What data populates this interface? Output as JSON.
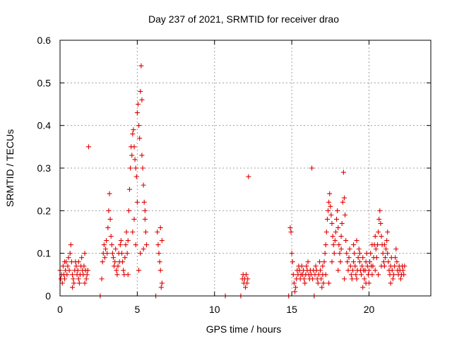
{
  "chart_data": {
    "type": "scatter",
    "title": "Day 237 of 2021, SRMTID for receiver drao",
    "xlabel": "GPS time / hours",
    "ylabel": "SRMTID / TECUs",
    "xlim": [
      0,
      24
    ],
    "ylim": [
      0,
      0.6
    ],
    "xticks": [
      0,
      5,
      10,
      15,
      20
    ],
    "yticks": [
      0,
      0.1,
      0.2,
      0.3,
      0.4,
      0.5,
      0.6
    ],
    "xtick_labels": [
      "0",
      "5",
      "10",
      "15",
      "20"
    ],
    "ytick_labels": [
      "0",
      "0.1",
      "0.2",
      "0.3",
      "0.4",
      "0.5",
      "0.6"
    ],
    "grid": true,
    "marker": "+",
    "color": "#e00000",
    "series": [
      {
        "name": "SRMTID",
        "points": [
          [
            0.0,
            0.06
          ],
          [
            0.05,
            0.04
          ],
          [
            0.1,
            0.05
          ],
          [
            0.15,
            0.03
          ],
          [
            0.2,
            0.07
          ],
          [
            0.25,
            0.05
          ],
          [
            0.3,
            0.04
          ],
          [
            0.35,
            0.06
          ],
          [
            0.4,
            0.08
          ],
          [
            0.45,
            0.05
          ],
          [
            0.5,
            0.07
          ],
          [
            0.55,
            0.09
          ],
          [
            0.6,
            0.06
          ],
          [
            0.65,
            0.1
          ],
          [
            0.7,
            0.12
          ],
          [
            0.75,
            0.08
          ],
          [
            0.8,
            0.05
          ],
          [
            0.85,
            0.04
          ],
          [
            0.9,
            0.03
          ],
          [
            0.95,
            0.06
          ],
          [
            1.0,
            0.08
          ],
          [
            1.05,
            0.07
          ],
          [
            1.1,
            0.05
          ],
          [
            1.15,
            0.06
          ],
          [
            1.2,
            0.04
          ],
          [
            1.25,
            0.03
          ],
          [
            1.3,
            0.05
          ],
          [
            1.35,
            0.07
          ],
          [
            1.4,
            0.09
          ],
          [
            1.45,
            0.06
          ],
          [
            1.5,
            0.05
          ],
          [
            1.55,
            0.07
          ],
          [
            1.6,
            0.1
          ],
          [
            1.65,
            0.06
          ],
          [
            1.7,
            0.04
          ],
          [
            1.75,
            0.05
          ],
          [
            1.8,
            0.06
          ],
          [
            1.85,
            0.35
          ],
          [
            0.3,
            0.08
          ],
          [
            0.8,
            0.02
          ],
          [
            1.2,
            0.08
          ],
          [
            1.6,
            0.03
          ],
          [
            2.6,
            0.0
          ],
          [
            2.7,
            0.04
          ],
          [
            2.75,
            0.08
          ],
          [
            2.8,
            0.1
          ],
          [
            2.85,
            0.12
          ],
          [
            2.9,
            0.09
          ],
          [
            2.95,
            0.11
          ],
          [
            3.0,
            0.13
          ],
          [
            3.05,
            0.1
          ],
          [
            3.1,
            0.16
          ],
          [
            3.15,
            0.2
          ],
          [
            3.2,
            0.24
          ],
          [
            3.25,
            0.18
          ],
          [
            3.3,
            0.14
          ],
          [
            3.35,
            0.12
          ],
          [
            3.4,
            0.1
          ],
          [
            3.45,
            0.09
          ],
          [
            3.5,
            0.07
          ],
          [
            3.55,
            0.08
          ],
          [
            3.6,
            0.11
          ],
          [
            3.65,
            0.06
          ],
          [
            3.7,
            0.05
          ],
          [
            3.75,
            0.07
          ],
          [
            3.8,
            0.1
          ],
          [
            3.85,
            0.08
          ],
          [
            3.9,
            0.12
          ],
          [
            3.95,
            0.13
          ],
          [
            4.0,
            0.1
          ],
          [
            4.05,
            0.08
          ],
          [
            4.1,
            0.06
          ],
          [
            4.15,
            0.05
          ],
          [
            4.2,
            0.09
          ],
          [
            4.25,
            0.12
          ],
          [
            4.3,
            0.15
          ],
          [
            4.35,
            0.1
          ],
          [
            4.4,
            0.13
          ],
          [
            4.45,
            0.2
          ],
          [
            4.5,
            0.25
          ],
          [
            4.55,
            0.3
          ],
          [
            4.6,
            0.35
          ],
          [
            4.65,
            0.33
          ],
          [
            4.7,
            0.38
          ],
          [
            4.75,
            0.39
          ],
          [
            4.8,
            0.35
          ],
          [
            4.85,
            0.32
          ],
          [
            4.9,
            0.3
          ],
          [
            4.95,
            0.28
          ],
          [
            5.0,
            0.43
          ],
          [
            5.05,
            0.45
          ],
          [
            5.1,
            0.4
          ],
          [
            5.15,
            0.37
          ],
          [
            5.2,
            0.48
          ],
          [
            5.25,
            0.54
          ],
          [
            5.3,
            0.46
          ],
          [
            5.35,
            0.3
          ],
          [
            5.4,
            0.26
          ],
          [
            5.45,
            0.22
          ],
          [
            5.5,
            0.18
          ],
          [
            5.55,
            0.15
          ],
          [
            5.6,
            0.12
          ],
          [
            4.7,
            0.15
          ],
          [
            4.9,
            0.12
          ],
          [
            5.1,
            0.06
          ],
          [
            5.2,
            0.1
          ],
          [
            5.4,
            0.11
          ],
          [
            4.4,
            0.05
          ],
          [
            5.5,
            0.2
          ],
          [
            5.3,
            0.33
          ],
          [
            5.0,
            0.22
          ],
          [
            4.8,
            0.18
          ],
          [
            6.2,
            0.0
          ],
          [
            6.3,
            0.15
          ],
          [
            6.35,
            0.12
          ],
          [
            6.4,
            0.1
          ],
          [
            6.45,
            0.08
          ],
          [
            6.5,
            0.06
          ],
          [
            6.55,
            0.02
          ],
          [
            6.6,
            0.13
          ],
          [
            6.5,
            0.16
          ],
          [
            6.6,
            0.03
          ],
          [
            10.7,
            0.0
          ],
          [
            11.7,
            0.0
          ],
          [
            11.8,
            0.04
          ],
          [
            11.85,
            0.05
          ],
          [
            11.9,
            0.03
          ],
          [
            11.95,
            0.04
          ],
          [
            12.0,
            0.02
          ],
          [
            12.05,
            0.05
          ],
          [
            12.1,
            0.03
          ],
          [
            12.15,
            0.04
          ],
          [
            12.2,
            0.28
          ],
          [
            14.8,
            0.0
          ],
          [
            14.9,
            0.16
          ],
          [
            14.95,
            0.15
          ],
          [
            15.0,
            0.1
          ],
          [
            15.05,
            0.08
          ],
          [
            15.1,
            0.05
          ],
          [
            15.15,
            0.03
          ],
          [
            15.2,
            0.01
          ],
          [
            15.25,
            0.02
          ],
          [
            15.3,
            0.04
          ],
          [
            15.35,
            0.06
          ],
          [
            15.4,
            0.05
          ],
          [
            15.45,
            0.07
          ],
          [
            15.5,
            0.06
          ],
          [
            15.55,
            0.04
          ],
          [
            15.6,
            0.05
          ],
          [
            15.65,
            0.07
          ],
          [
            15.7,
            0.05
          ],
          [
            15.75,
            0.06
          ],
          [
            15.8,
            0.04
          ],
          [
            15.85,
            0.03
          ],
          [
            15.9,
            0.05
          ],
          [
            15.95,
            0.07
          ],
          [
            16.0,
            0.06
          ],
          [
            16.05,
            0.08
          ],
          [
            16.1,
            0.05
          ],
          [
            16.15,
            0.04
          ],
          [
            16.2,
            0.06
          ],
          [
            16.25,
            0.05
          ],
          [
            16.3,
            0.3
          ],
          [
            16.35,
            0.04
          ],
          [
            16.4,
            0.06
          ],
          [
            16.45,
            0.0
          ],
          [
            16.5,
            0.05
          ],
          [
            16.55,
            0.07
          ],
          [
            16.6,
            0.06
          ],
          [
            16.65,
            0.04
          ],
          [
            16.7,
            0.03
          ],
          [
            16.75,
            0.05
          ],
          [
            16.8,
            0.08
          ],
          [
            16.85,
            0.06
          ],
          [
            16.9,
            0.04
          ],
          [
            16.95,
            0.02
          ],
          [
            17.0,
            0.05
          ],
          [
            17.05,
            0.03
          ],
          [
            17.1,
            0.08
          ],
          [
            17.15,
            0.1
          ],
          [
            17.2,
            0.12
          ],
          [
            17.25,
            0.15
          ],
          [
            17.3,
            0.18
          ],
          [
            17.35,
            0.2
          ],
          [
            17.4,
            0.22
          ],
          [
            17.45,
            0.24
          ],
          [
            17.5,
            0.21
          ],
          [
            17.55,
            0.19
          ],
          [
            17.6,
            0.17
          ],
          [
            17.65,
            0.14
          ],
          [
            17.7,
            0.12
          ],
          [
            17.75,
            0.1
          ],
          [
            17.8,
            0.13
          ],
          [
            17.85,
            0.15
          ],
          [
            17.9,
            0.18
          ],
          [
            17.95,
            0.2
          ],
          [
            18.0,
            0.16
          ],
          [
            18.05,
            0.12
          ],
          [
            18.1,
            0.1
          ],
          [
            18.15,
            0.08
          ],
          [
            18.2,
            0.14
          ],
          [
            18.25,
            0.17
          ],
          [
            18.3,
            0.22
          ],
          [
            18.35,
            0.29
          ],
          [
            18.4,
            0.23
          ],
          [
            18.45,
            0.19
          ],
          [
            18.5,
            0.13
          ],
          [
            18.55,
            0.1
          ],
          [
            18.6,
            0.08
          ],
          [
            18.65,
            0.06
          ],
          [
            18.7,
            0.09
          ],
          [
            18.75,
            0.11
          ],
          [
            18.8,
            0.07
          ],
          [
            18.85,
            0.05
          ],
          [
            18.9,
            0.04
          ],
          [
            18.95,
            0.06
          ],
          [
            19.0,
            0.08
          ],
          [
            19.05,
            0.1
          ],
          [
            19.1,
            0.07
          ],
          [
            19.15,
            0.05
          ],
          [
            19.2,
            0.04
          ],
          [
            19.25,
            0.06
          ],
          [
            19.3,
            0.09
          ],
          [
            19.35,
            0.11
          ],
          [
            19.4,
            0.08
          ],
          [
            19.45,
            0.06
          ],
          [
            19.5,
            0.05
          ],
          [
            19.55,
            0.07
          ],
          [
            19.6,
            0.09
          ],
          [
            19.65,
            0.06
          ],
          [
            19.7,
            0.04
          ],
          [
            19.75,
            0.06
          ],
          [
            19.8,
            0.08
          ],
          [
            19.85,
            0.1
          ],
          [
            19.9,
            0.07
          ],
          [
            19.95,
            0.05
          ],
          [
            20.0,
            0.06
          ],
          [
            20.05,
            0.08
          ],
          [
            20.1,
            0.1
          ],
          [
            20.15,
            0.07
          ],
          [
            20.2,
            0.05
          ],
          [
            20.25,
            0.07
          ],
          [
            20.3,
            0.09
          ],
          [
            20.35,
            0.12
          ],
          [
            20.4,
            0.14
          ],
          [
            20.45,
            0.11
          ],
          [
            20.5,
            0.09
          ],
          [
            20.55,
            0.12
          ],
          [
            20.6,
            0.15
          ],
          [
            20.65,
            0.18
          ],
          [
            20.7,
            0.2
          ],
          [
            20.75,
            0.17
          ],
          [
            20.8,
            0.14
          ],
          [
            20.85,
            0.12
          ],
          [
            20.9,
            0.1
          ],
          [
            20.95,
            0.08
          ],
          [
            21.0,
            0.07
          ],
          [
            21.05,
            0.09
          ],
          [
            21.1,
            0.11
          ],
          [
            21.15,
            0.13
          ],
          [
            21.2,
            0.1
          ],
          [
            21.25,
            0.08
          ],
          [
            21.3,
            0.06
          ],
          [
            21.35,
            0.05
          ],
          [
            21.4,
            0.07
          ],
          [
            21.45,
            0.09
          ],
          [
            21.5,
            0.06
          ],
          [
            21.55,
            0.04
          ],
          [
            21.6,
            0.05
          ],
          [
            21.65,
            0.07
          ],
          [
            21.7,
            0.09
          ],
          [
            21.75,
            0.11
          ],
          [
            21.8,
            0.08
          ],
          [
            21.85,
            0.06
          ],
          [
            21.9,
            0.05
          ],
          [
            21.95,
            0.07
          ],
          [
            22.0,
            0.06
          ],
          [
            22.05,
            0.04
          ],
          [
            22.1,
            0.05
          ],
          [
            22.15,
            0.07
          ],
          [
            22.2,
            0.06
          ],
          [
            22.25,
            0.05
          ],
          [
            22.3,
            0.07
          ],
          [
            17.4,
            0.03
          ],
          [
            17.2,
            0.05
          ],
          [
            17.0,
            0.07
          ],
          [
            17.6,
            0.08
          ],
          [
            18.0,
            0.06
          ],
          [
            18.4,
            0.04
          ],
          [
            18.2,
            0.11
          ],
          [
            19.0,
            0.12
          ],
          [
            19.2,
            0.13
          ],
          [
            19.4,
            0.1
          ],
          [
            19.6,
            0.02
          ],
          [
            19.8,
            0.03
          ],
          [
            20.0,
            0.03
          ],
          [
            20.2,
            0.12
          ],
          [
            20.4,
            0.06
          ],
          [
            20.6,
            0.05
          ],
          [
            20.8,
            0.07
          ],
          [
            21.0,
            0.12
          ],
          [
            21.2,
            0.15
          ],
          [
            21.4,
            0.03
          ]
        ]
      }
    ]
  }
}
